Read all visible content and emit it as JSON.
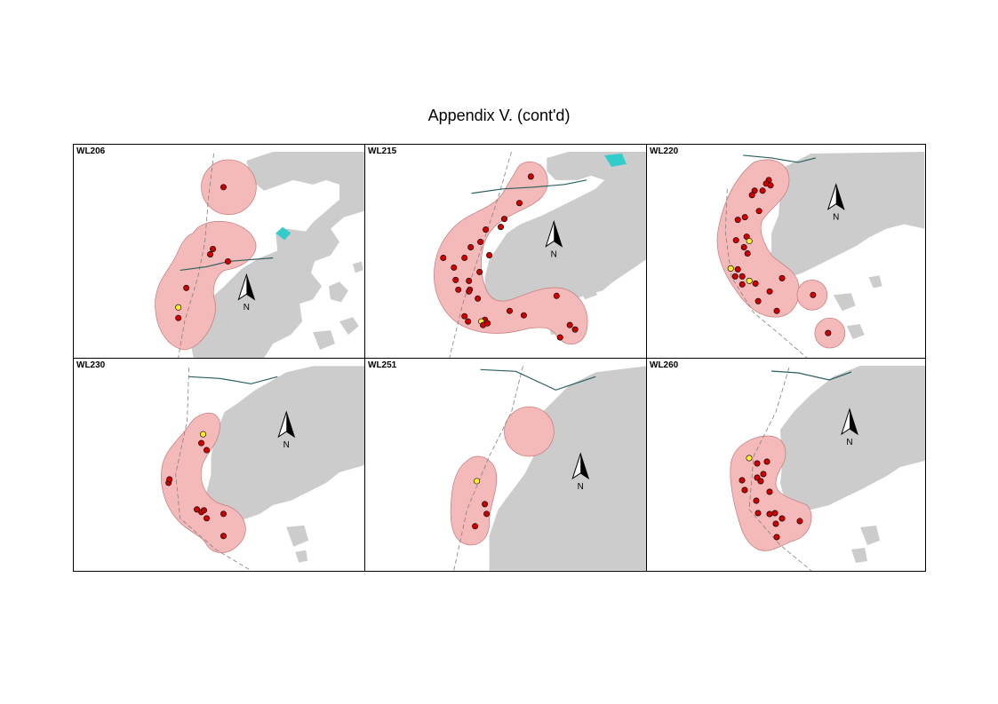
{
  "title": "Appendix V.  (cont'd)",
  "north_label": "N",
  "colors": {
    "land": "#cccccc",
    "range": "#f4b9b9",
    "range_stroke": "#c47878",
    "point": "#cc0000",
    "point_alt": "#ffee33",
    "track": "#808080",
    "river": "#33cccc",
    "road": "#2a5f5f"
  },
  "panels": [
    {
      "label": "WL206",
      "ranges": [
        [
          45,
          0,
          188,
          20,
          38
        ],
        [
          35,
          0,
          160,
          120,
          70
        ],
        [
          30,
          0,
          120,
          180,
          60
        ],
        [
          25,
          0,
          115,
          215,
          48
        ]
      ],
      "points": [
        [
          169,
          48,
          0
        ],
        [
          157,
          118,
          0
        ],
        [
          154,
          124,
          0
        ],
        [
          174,
          132,
          0
        ],
        [
          127,
          162,
          0
        ],
        [
          118,
          184,
          1
        ],
        [
          118,
          196,
          0
        ]
      ]
    },
    {
      "label": "WL215",
      "ranges": [
        [
          30,
          0,
          185,
          45,
          32
        ],
        [
          40,
          0,
          140,
          95,
          60
        ],
        [
          40,
          0,
          110,
          150,
          62
        ],
        [
          45,
          0,
          150,
          190,
          55
        ],
        [
          30,
          0,
          240,
          190,
          38
        ]
      ],
      "points": [
        [
          187,
          36,
          0
        ],
        [
          174,
          66,
          0
        ],
        [
          157,
          84,
          0
        ],
        [
          153,
          93,
          0
        ],
        [
          136,
          96,
          0
        ],
        [
          130,
          110,
          0
        ],
        [
          140,
          125,
          0
        ],
        [
          119,
          116,
          0
        ],
        [
          112,
          128,
          0
        ],
        [
          88,
          128,
          0
        ],
        [
          100,
          139,
          0
        ],
        [
          129,
          144,
          0
        ],
        [
          117,
          154,
          0
        ],
        [
          102,
          153,
          0
        ],
        [
          105,
          164,
          0
        ],
        [
          118,
          164,
          0
        ],
        [
          127,
          174,
          0
        ],
        [
          117,
          166,
          0
        ],
        [
          135,
          198,
          0
        ],
        [
          131,
          200,
          1
        ],
        [
          112,
          194,
          0
        ],
        [
          116,
          200,
          0
        ],
        [
          133,
          204,
          0
        ],
        [
          138,
          202,
          0
        ],
        [
          179,
          193,
          0
        ],
        [
          163,
          188,
          0
        ],
        [
          216,
          171,
          0
        ],
        [
          231,
          204,
          0
        ],
        [
          237,
          209,
          0
        ],
        [
          220,
          218,
          0
        ]
      ]
    },
    {
      "label": "WL220",
      "ranges": [
        [
          22,
          0,
          125,
          60,
          60
        ],
        [
          25,
          0,
          110,
          150,
          50
        ],
        [
          25,
          0,
          145,
          165,
          35
        ],
        [
          190,
          172,
          16,
          0,
          0
        ],
        [
          205,
          215,
          18,
          0,
          0
        ]
      ],
      "points": [
        [
          137,
          40,
          0
        ],
        [
          134,
          44,
          0
        ],
        [
          139,
          46,
          0
        ],
        [
          130,
          52,
          0
        ],
        [
          121,
          52,
          0
        ],
        [
          118,
          57,
          0
        ],
        [
          126,
          75,
          0
        ],
        [
          110,
          82,
          0
        ],
        [
          102,
          85,
          0
        ],
        [
          100,
          108,
          0
        ],
        [
          112,
          104,
          0
        ],
        [
          115,
          109,
          1
        ],
        [
          109,
          116,
          0
        ],
        [
          113,
          123,
          0
        ],
        [
          94,
          140,
          0
        ],
        [
          102,
          141,
          0
        ],
        [
          99,
          149,
          0
        ],
        [
          107,
          149,
          0
        ],
        [
          107,
          158,
          0
        ],
        [
          115,
          154,
          1
        ],
        [
          122,
          157,
          0
        ],
        [
          152,
          151,
          0
        ],
        [
          138,
          166,
          0
        ],
        [
          125,
          177,
          0
        ],
        [
          94,
          140,
          1
        ],
        [
          187,
          170,
          0
        ],
        [
          146,
          188,
          0
        ],
        [
          204,
          213,
          0
        ]
      ]
    },
    {
      "label": "WL230",
      "ranges": [
        [
          30,
          0,
          140,
          120,
          60
        ],
        [
          28,
          0,
          160,
          190,
          40
        ]
      ],
      "points": [
        [
          146,
          85,
          1
        ],
        [
          144,
          95,
          0
        ],
        [
          150,
          103,
          0
        ],
        [
          107,
          140,
          0
        ],
        [
          108,
          136,
          0
        ],
        [
          144,
          173,
          0
        ],
        [
          139,
          170,
          0
        ],
        [
          147,
          171,
          0
        ],
        [
          150,
          180,
          0
        ],
        [
          169,
          175,
          0
        ],
        [
          169,
          200,
          0
        ]
      ]
    },
    {
      "label": "WL251",
      "ranges": [
        [
          28,
          0,
          185,
          82,
          0
        ],
        [
          30,
          0,
          132,
          165,
          40
        ]
      ],
      "points": [
        [
          126,
          138,
          1
        ],
        [
          135,
          164,
          0
        ],
        [
          137,
          175,
          0
        ],
        [
          124,
          189,
          0
        ]
      ]
    },
    {
      "label": "WL260",
      "ranges": [
        [
          35,
          0,
          140,
          120,
          40
        ],
        [
          30,
          0,
          150,
          175,
          35
        ],
        [
          28,
          0,
          180,
          185,
          28
        ]
      ],
      "points": [
        [
          115,
          112,
          1
        ],
        [
          124,
          118,
          0
        ],
        [
          135,
          116,
          0
        ],
        [
          131,
          130,
          0
        ],
        [
          124,
          134,
          0
        ],
        [
          128,
          138,
          0
        ],
        [
          107,
          137,
          0
        ],
        [
          110,
          148,
          0
        ],
        [
          138,
          150,
          0
        ],
        [
          123,
          160,
          0
        ],
        [
          125,
          174,
          0
        ],
        [
          138,
          175,
          0
        ],
        [
          144,
          174,
          0
        ],
        [
          145,
          186,
          0
        ],
        [
          152,
          180,
          0
        ],
        [
          172,
          183,
          0
        ],
        [
          146,
          201,
          0
        ]
      ]
    }
  ]
}
